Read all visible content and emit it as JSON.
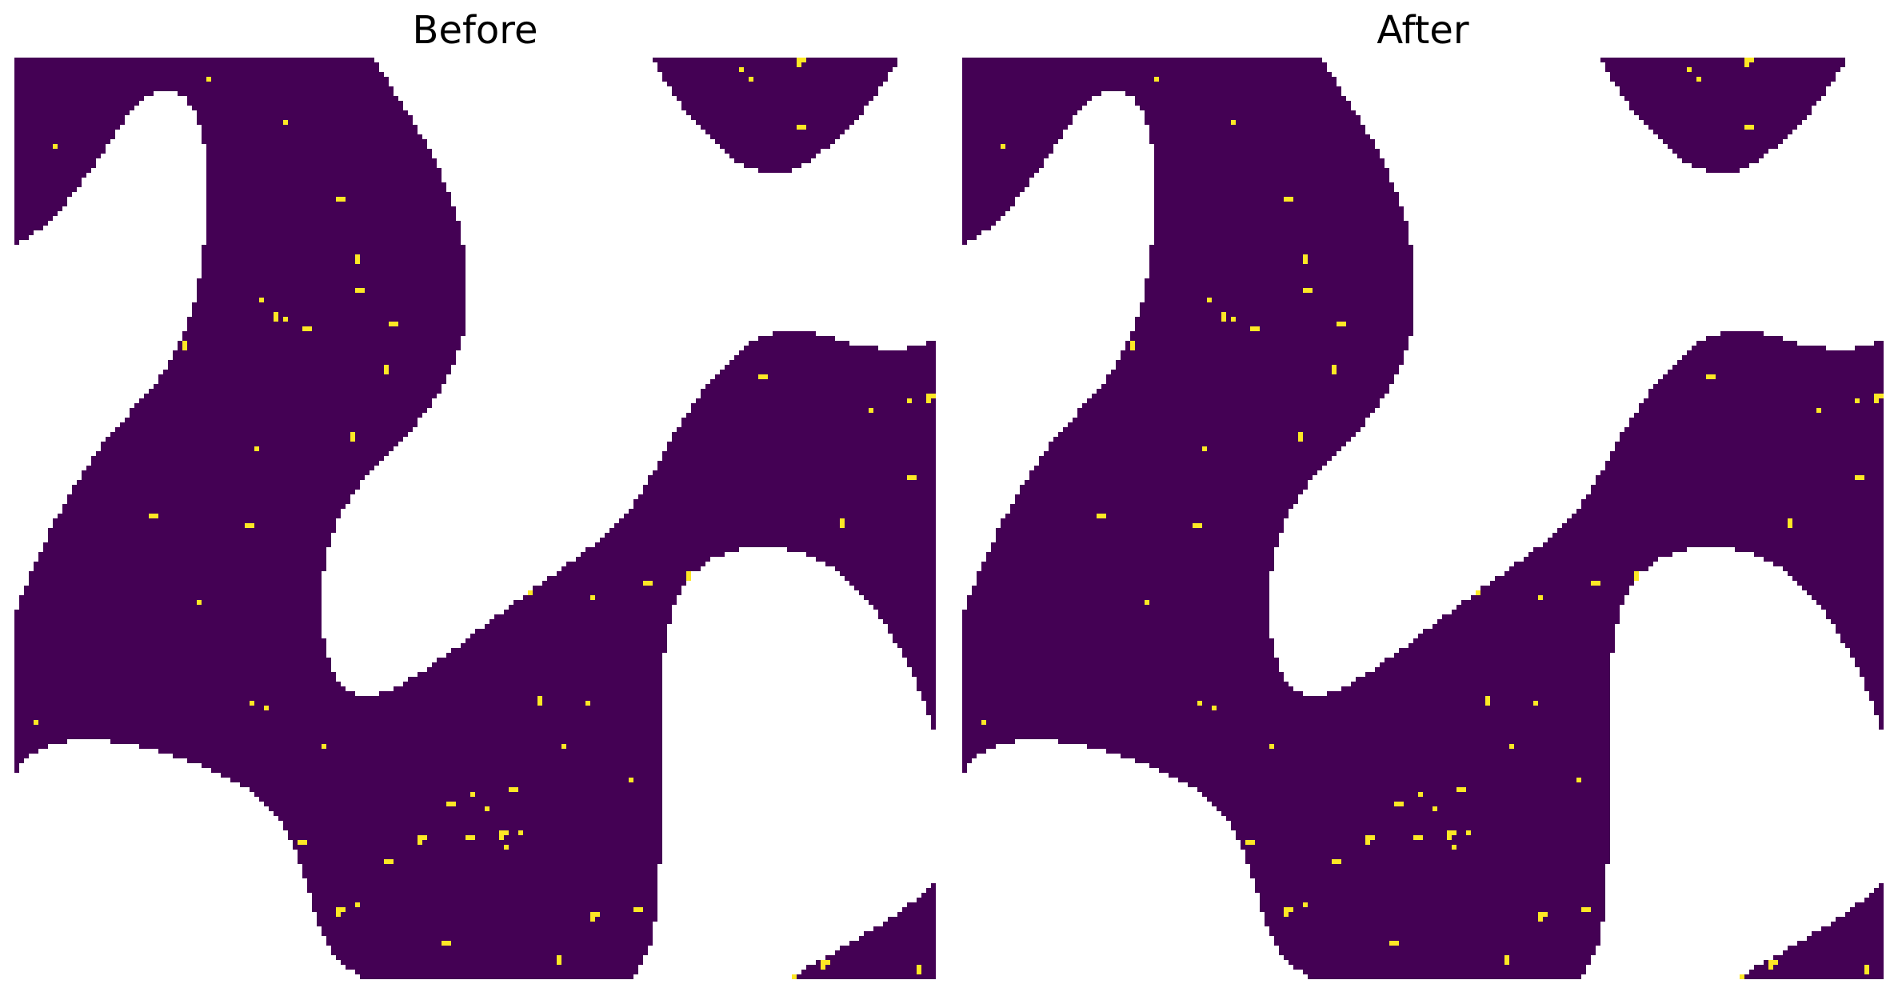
{
  "panels": [
    {
      "title": "Before"
    },
    {
      "title": "After"
    }
  ],
  "colors": {
    "pore": "#ffffff",
    "solid": "#440154",
    "inclusion": "#fde725"
  }
}
